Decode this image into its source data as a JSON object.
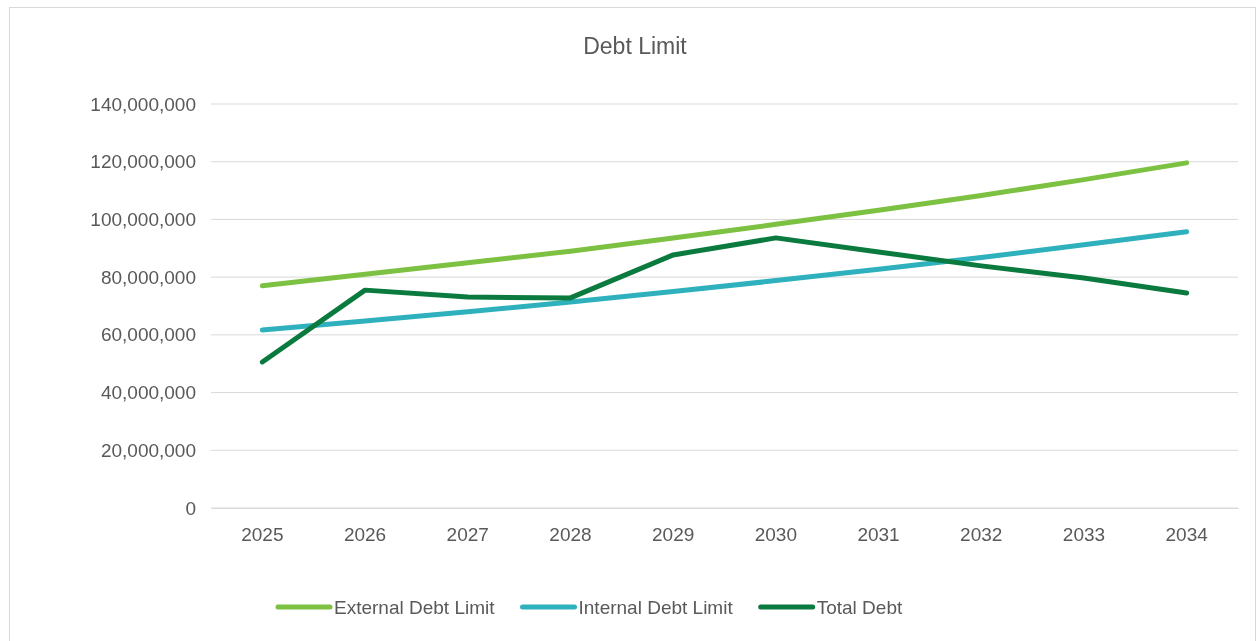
{
  "chart_data": {
    "type": "line",
    "title": "Debt Limit",
    "categories": [
      "2025",
      "2026",
      "2027",
      "2028",
      "2029",
      "2030",
      "2031",
      "2032",
      "2033",
      "2034"
    ],
    "series": [
      {
        "name": "External Debt Limit",
        "color": "#7dc142",
        "values": [
          77000000,
          81000000,
          85000000,
          89000000,
          93600000,
          98300000,
          103200000,
          108300000,
          113800000,
          119600000
        ]
      },
      {
        "name": "Internal Debt Limit",
        "color": "#2eb1bd",
        "values": [
          61700000,
          64800000,
          68000000,
          71400000,
          75000000,
          78800000,
          82700000,
          86800000,
          91200000,
          95700000
        ]
      },
      {
        "name": "Total Debt",
        "color": "#0b7a3e",
        "values": [
          50600000,
          75500000,
          73100000,
          72800000,
          87700000,
          93600000,
          88700000,
          83900000,
          79700000,
          74500000
        ]
      }
    ],
    "ylim": [
      0,
      140000000
    ],
    "yticks": [
      {
        "value": 0,
        "label": "0"
      },
      {
        "value": 20000000,
        "label": "20,000,000"
      },
      {
        "value": 40000000,
        "label": "40,000,000"
      },
      {
        "value": 60000000,
        "label": "60,000,000"
      },
      {
        "value": 80000000,
        "label": "80,000,000"
      },
      {
        "value": 100000000,
        "label": "100,000,000"
      },
      {
        "value": 120000000,
        "label": "120,000,000"
      },
      {
        "value": 140000000,
        "label": "140,000,000"
      }
    ],
    "grid": "y",
    "legend": "bottom",
    "marker": "none",
    "line_style": "solid"
  }
}
